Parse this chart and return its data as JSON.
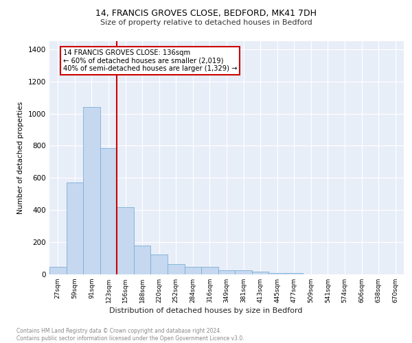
{
  "title1": "14, FRANCIS GROVES CLOSE, BEDFORD, MK41 7DH",
  "title2": "Size of property relative to detached houses in Bedford",
  "xlabel": "Distribution of detached houses by size in Bedford",
  "ylabel": "Number of detached properties",
  "bar_labels": [
    "27sqm",
    "59sqm",
    "91sqm",
    "123sqm",
    "156sqm",
    "188sqm",
    "220sqm",
    "252sqm",
    "284sqm",
    "316sqm",
    "349sqm",
    "381sqm",
    "413sqm",
    "445sqm",
    "477sqm",
    "509sqm",
    "541sqm",
    "574sqm",
    "606sqm",
    "638sqm",
    "670sqm"
  ],
  "bar_values": [
    47,
    570,
    1040,
    785,
    420,
    180,
    125,
    65,
    48,
    48,
    27,
    27,
    18,
    10,
    8,
    0,
    0,
    0,
    0,
    0,
    0
  ],
  "bar_color": "#c5d8f0",
  "bar_edge_color": "#7aaed6",
  "vline_x": 3.5,
  "vline_color": "#cc0000",
  "annotation_text": "14 FRANCIS GROVES CLOSE: 136sqm\n← 60% of detached houses are smaller (2,019)\n40% of semi-detached houses are larger (1,329) →",
  "annotation_box_color": "#ffffff",
  "annotation_box_edge": "#cc0000",
  "ylim": [
    0,
    1450
  ],
  "yticks": [
    0,
    200,
    400,
    600,
    800,
    1000,
    1200,
    1400
  ],
  "footer": "Contains HM Land Registry data © Crown copyright and database right 2024.\nContains public sector information licensed under the Open Government Licence v3.0.",
  "bg_color": "#e8eef8",
  "fig_bg_color": "#ffffff"
}
